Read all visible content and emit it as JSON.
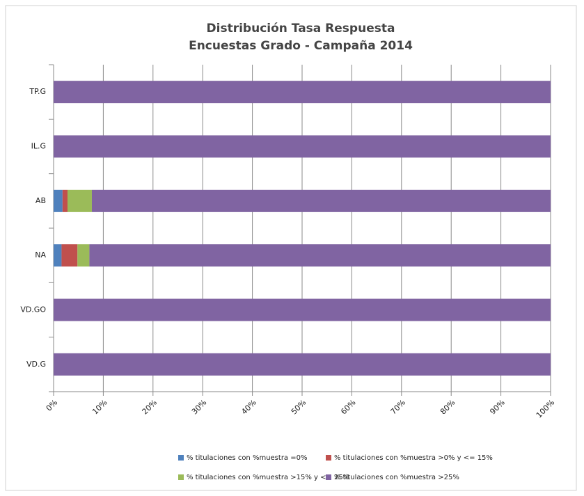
{
  "chart_data": {
    "type": "stacked_barh",
    "title": [
      "Distribución Tasa Respuesta",
      "Encuestas Grado - Campaña 2014"
    ],
    "categories": [
      "TP.G",
      "IL.G",
      "AB",
      "NA",
      "VD.GO",
      "VD.G"
    ],
    "series": [
      {
        "name": "% titulaciones con %muestra  =0%",
        "color": "#4f81bd",
        "values": [
          0,
          0,
          1.8,
          1.6,
          0,
          0
        ]
      },
      {
        "name": "% titulaciones con %muestra  >0% y <= 15%",
        "color": "#c0504d",
        "values": [
          0,
          0,
          1.0,
          3.2,
          0,
          0
        ]
      },
      {
        "name": "% titulaciones con %muestra  >15% y <= 25%",
        "color": "#9bbb59",
        "values": [
          0,
          0,
          4.9,
          2.4,
          0,
          0
        ]
      },
      {
        "name": "% titulaciones con %muestra  >25%",
        "color": "#8064a2",
        "values": [
          100,
          100,
          92.3,
          92.8,
          100,
          100
        ]
      }
    ],
    "xlim": [
      0,
      100
    ],
    "xticks": [
      {
        "value": 0,
        "label": "0%"
      },
      {
        "value": 10,
        "label": "10%"
      },
      {
        "value": 20,
        "label": "20%"
      },
      {
        "value": 30,
        "label": "30%"
      },
      {
        "value": 40,
        "label": "40%"
      },
      {
        "value": 50,
        "label": "50%"
      },
      {
        "value": 60,
        "label": "60%"
      },
      {
        "value": 70,
        "label": "70%"
      },
      {
        "value": 80,
        "label": "80%"
      },
      {
        "value": 90,
        "label": "90%"
      },
      {
        "value": 100,
        "label": "100%"
      }
    ],
    "grid": true,
    "legend": "bottom"
  }
}
